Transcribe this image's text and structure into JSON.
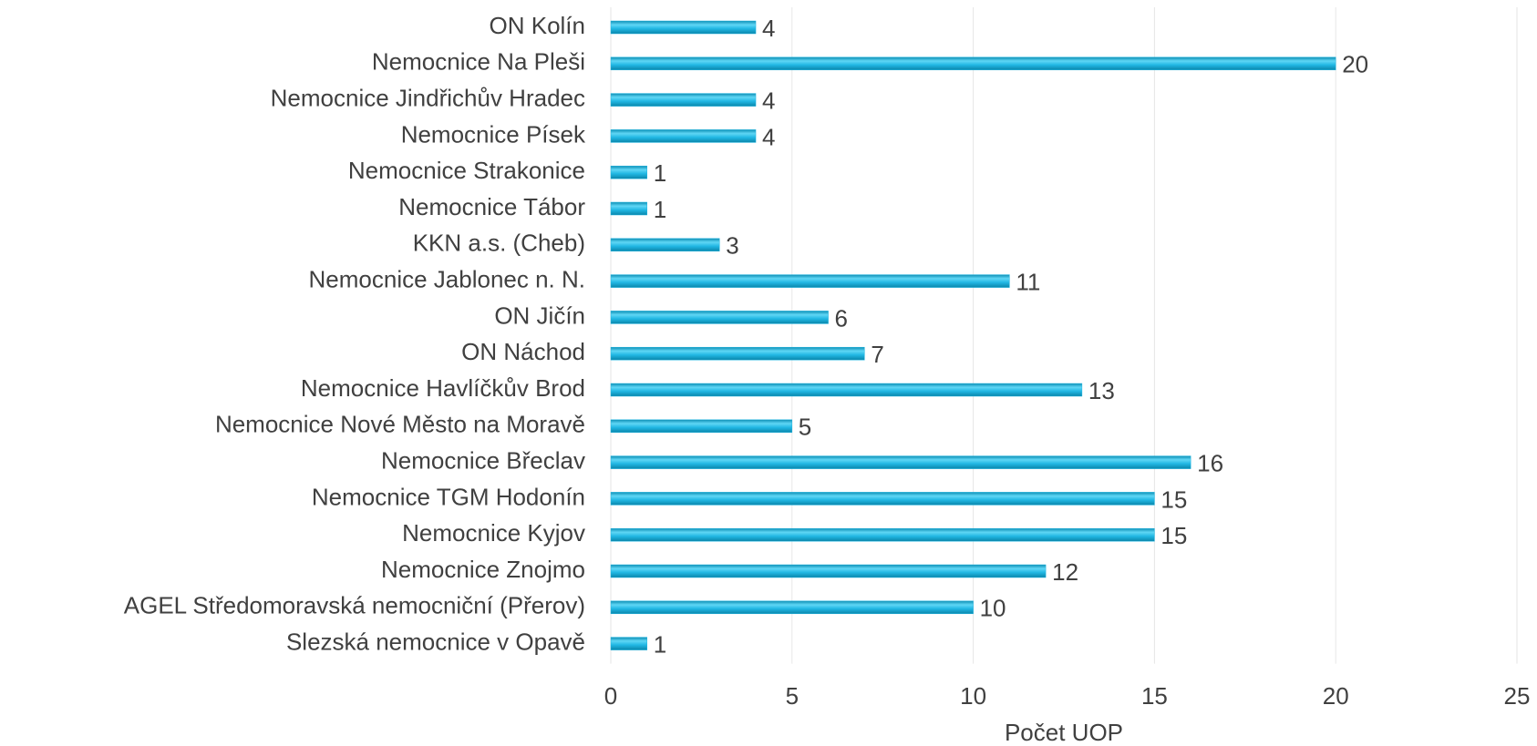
{
  "chart_data": {
    "type": "bar",
    "orientation": "horizontal",
    "categories": [
      "ON Kolín",
      "Nemocnice Na Pleši",
      "Nemocnice Jindřichův Hradec",
      "Nemocnice Písek",
      "Nemocnice Strakonice",
      "Nemocnice Tábor",
      "KKN a.s. (Cheb)",
      "Nemocnice Jablonec n. N.",
      "ON Jičín",
      "ON Náchod",
      "Nemocnice Havlíčkův Brod",
      "Nemocnice Nové Město na Moravě",
      "Nemocnice Břeclav",
      "Nemocnice TGM Hodonín",
      "Nemocnice Kyjov",
      "Nemocnice Znojmo",
      "AGEL Středomoravská nemocniční (Přerov)",
      "Slezská nemocnice v Opavě"
    ],
    "values": [
      4,
      20,
      4,
      4,
      1,
      1,
      3,
      11,
      6,
      7,
      13,
      5,
      16,
      15,
      15,
      12,
      10,
      1
    ],
    "color": "#1eb4e0",
    "xlim": [
      0,
      25
    ],
    "xticks": [
      0,
      5,
      10,
      15,
      20,
      25
    ],
    "grid": true,
    "x_label": "Počet UOP"
  }
}
